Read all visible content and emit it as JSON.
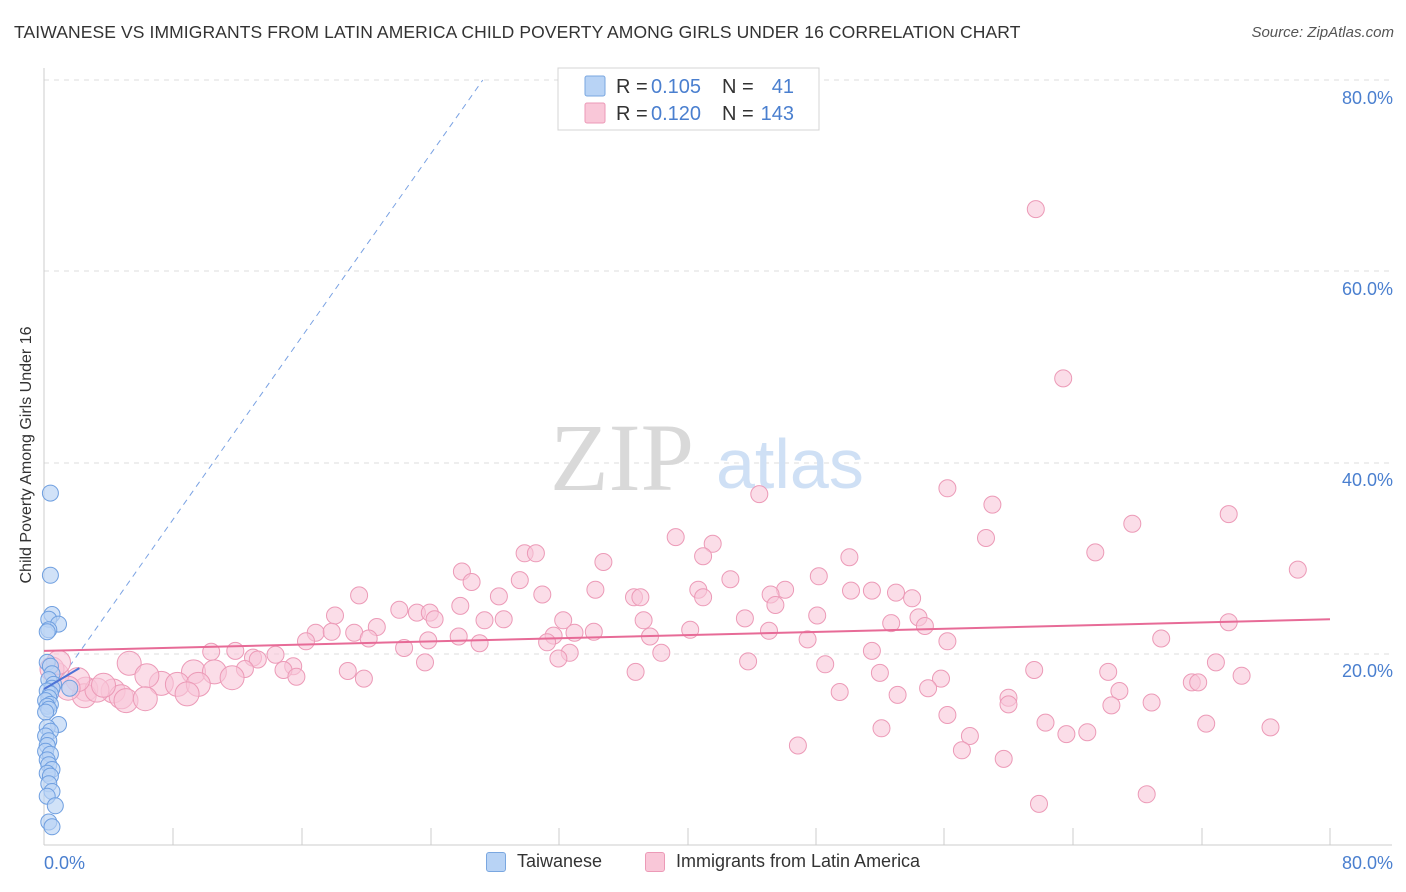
{
  "title": "TAIWANESE VS IMMIGRANTS FROM LATIN AMERICA CHILD POVERTY AMONG GIRLS UNDER 16 CORRELATION CHART",
  "source": "Source: ZipAtlas.com",
  "watermark": {
    "zip": "ZIP",
    "atlas": "atlas"
  },
  "colors": {
    "taiwanese_fill": "#b8d3f5",
    "taiwanese_stroke": "#6f9fe0",
    "taiwanese_line": "#4d73d6",
    "latin_fill": "#f9c7d8",
    "latin_stroke": "#ec9ab7",
    "latin_line": "#e76b97",
    "tick_label": "#4a7fcf",
    "grid": "#dddddd"
  },
  "legend": {
    "rows": [
      {
        "r_label": "R =",
        "r_value": "0.105",
        "n_label": "N =",
        "n_value": "41"
      },
      {
        "r_label": "R =",
        "r_value": "0.120",
        "n_label": "N =",
        "n_value": "143"
      }
    ]
  },
  "bottom_legend": {
    "taiwanese": "Taiwanese",
    "latin": "Immigrants from Latin America"
  },
  "chart_data": {
    "type": "scatter",
    "title": "TAIWANESE VS IMMIGRANTS FROM LATIN AMERICA CHILD POVERTY AMONG GIRLS UNDER 16 CORRELATION CHART",
    "xlabel": "",
    "ylabel": "Child Poverty Among Girls Under 16",
    "xlim": [
      0,
      80
    ],
    "ylim": [
      0,
      80
    ],
    "x_tick_labels": [
      "0.0%",
      "80.0%"
    ],
    "y_ticks": [
      20,
      40,
      60,
      80
    ],
    "y_tick_labels": [
      "20.0%",
      "40.0%",
      "60.0%",
      "80.0%"
    ],
    "grid": true,
    "legend_position": "top-center",
    "series": [
      {
        "name": "Taiwanese",
        "r": 0.105,
        "n": 41,
        "trend": {
          "x0": 0,
          "y0": 16.3,
          "x1": 2.2,
          "y1": 18.5
        },
        "ref_line": {
          "x0": 0,
          "y0": 14.9,
          "x1": 27.3,
          "y1": 80
        },
        "points": [
          [
            0.4,
            36.8
          ],
          [
            0.4,
            28.2
          ],
          [
            0.5,
            24.1
          ],
          [
            0.3,
            23.6
          ],
          [
            0.9,
            23.1
          ],
          [
            0.3,
            22.5
          ],
          [
            0.2,
            22.3
          ],
          [
            0.2,
            19.1
          ],
          [
            0.4,
            18.7
          ],
          [
            0.5,
            17.9
          ],
          [
            0.3,
            17.3
          ],
          [
            0.6,
            16.8
          ],
          [
            0.5,
            16.4
          ],
          [
            0.2,
            16.1
          ],
          [
            0.4,
            15.8
          ],
          [
            0.3,
            15.4
          ],
          [
            0.1,
            15.1
          ],
          [
            0.4,
            14.7
          ],
          [
            0.2,
            14.5
          ],
          [
            0.3,
            14.2
          ],
          [
            0.1,
            13.9
          ],
          [
            0.9,
            12.6
          ],
          [
            0.2,
            12.3
          ],
          [
            0.4,
            11.9
          ],
          [
            0.1,
            11.4
          ],
          [
            0.3,
            10.9
          ],
          [
            0.2,
            10.4
          ],
          [
            0.1,
            9.8
          ],
          [
            0.4,
            9.5
          ],
          [
            0.2,
            8.9
          ],
          [
            0.3,
            8.4
          ],
          [
            0.5,
            7.9
          ],
          [
            0.2,
            7.5
          ],
          [
            0.4,
            7.2
          ],
          [
            0.3,
            6.4
          ],
          [
            0.5,
            5.6
          ],
          [
            0.2,
            5.1
          ],
          [
            0.7,
            4.1
          ],
          [
            0.3,
            2.4
          ],
          [
            0.5,
            1.9
          ],
          [
            1.6,
            16.4
          ]
        ]
      },
      {
        "name": "Immigrants from Latin America",
        "r": 0.12,
        "n": 143,
        "trend": {
          "x0": 0,
          "y0": 20.3,
          "x1": 80,
          "y1": 23.6
        },
        "points": [
          [
            61.7,
            66.5
          ],
          [
            63.4,
            48.8
          ],
          [
            44.5,
            36.7
          ],
          [
            56.2,
            37.3
          ],
          [
            59.0,
            35.6
          ],
          [
            73.7,
            34.6
          ],
          [
            67.7,
            33.6
          ],
          [
            39.3,
            32.2
          ],
          [
            58.6,
            32.1
          ],
          [
            41.6,
            31.5
          ],
          [
            29.9,
            30.5
          ],
          [
            30.6,
            30.5
          ],
          [
            41.0,
            30.2
          ],
          [
            50.1,
            30.1
          ],
          [
            65.4,
            30.6
          ],
          [
            34.8,
            29.6
          ],
          [
            26.0,
            28.6
          ],
          [
            78.0,
            28.8
          ],
          [
            48.2,
            28.1
          ],
          [
            42.7,
            27.8
          ],
          [
            29.6,
            27.7
          ],
          [
            26.6,
            27.5
          ],
          [
            34.3,
            26.7
          ],
          [
            40.7,
            26.7
          ],
          [
            46.1,
            26.7
          ],
          [
            51.5,
            26.6
          ],
          [
            50.2,
            26.6
          ],
          [
            53.0,
            26.4
          ],
          [
            45.2,
            26.2
          ],
          [
            36.7,
            25.9
          ],
          [
            37.1,
            25.9
          ],
          [
            31.0,
            26.2
          ],
          [
            19.6,
            26.1
          ],
          [
            28.3,
            26.0
          ],
          [
            54.0,
            25.8
          ],
          [
            41.0,
            25.9
          ],
          [
            45.5,
            25.1
          ],
          [
            25.9,
            25.0
          ],
          [
            22.1,
            24.6
          ],
          [
            23.2,
            24.3
          ],
          [
            24.0,
            24.3
          ],
          [
            18.1,
            24.0
          ],
          [
            48.1,
            24.0
          ],
          [
            73.7,
            23.3
          ],
          [
            27.4,
            23.5
          ],
          [
            28.6,
            23.6
          ],
          [
            37.3,
            23.5
          ],
          [
            43.6,
            23.7
          ],
          [
            54.4,
            23.8
          ],
          [
            24.3,
            23.6
          ],
          [
            32.3,
            23.5
          ],
          [
            52.7,
            23.2
          ],
          [
            54.8,
            22.9
          ],
          [
            20.7,
            22.8
          ],
          [
            16.9,
            22.2
          ],
          [
            17.9,
            22.3
          ],
          [
            19.3,
            22.2
          ],
          [
            33.0,
            22.2
          ],
          [
            34.2,
            22.3
          ],
          [
            40.2,
            22.5
          ],
          [
            45.1,
            22.4
          ],
          [
            25.8,
            21.8
          ],
          [
            31.7,
            21.9
          ],
          [
            37.7,
            21.8
          ],
          [
            16.3,
            21.3
          ],
          [
            20.2,
            21.6
          ],
          [
            23.9,
            21.4
          ],
          [
            27.1,
            21.1
          ],
          [
            31.3,
            21.2
          ],
          [
            47.5,
            21.5
          ],
          [
            56.2,
            21.3
          ],
          [
            69.5,
            21.6
          ],
          [
            10.4,
            20.2
          ],
          [
            11.9,
            20.3
          ],
          [
            13.0,
            19.6
          ],
          [
            13.3,
            19.4
          ],
          [
            14.4,
            19.9
          ],
          [
            22.4,
            20.6
          ],
          [
            32.7,
            20.1
          ],
          [
            38.4,
            20.1
          ],
          [
            51.5,
            20.3
          ],
          [
            5.3,
            19.0
          ],
          [
            23.7,
            19.1
          ],
          [
            32.0,
            19.5
          ],
          [
            43.8,
            19.2
          ],
          [
            48.6,
            18.9
          ],
          [
            72.9,
            19.1
          ],
          [
            9.3,
            18.1
          ],
          [
            10.6,
            18.1
          ],
          [
            12.5,
            18.4
          ],
          [
            15.5,
            18.7
          ],
          [
            14.9,
            18.3
          ],
          [
            36.8,
            18.1
          ],
          [
            52.0,
            18.0
          ],
          [
            61.6,
            18.3
          ],
          [
            66.2,
            18.1
          ],
          [
            71.4,
            17.0
          ],
          [
            74.5,
            17.7
          ],
          [
            2.6,
            16.3
          ],
          [
            7.3,
            16.9
          ],
          [
            8.3,
            16.8
          ],
          [
            9.6,
            16.8
          ],
          [
            11.7,
            17.5
          ],
          [
            4.3,
            16.1
          ],
          [
            6.4,
            17.7
          ],
          [
            4.8,
            15.5
          ],
          [
            8.9,
            15.8
          ],
          [
            2.5,
            15.6
          ],
          [
            3.3,
            16.2
          ],
          [
            2.1,
            17.3
          ],
          [
            0.8,
            17.8
          ],
          [
            0.5,
            18.4
          ],
          [
            0.9,
            19.1
          ],
          [
            1.5,
            16.4
          ],
          [
            3.7,
            16.7
          ],
          [
            5.1,
            15.1
          ],
          [
            6.3,
            15.3
          ],
          [
            55.8,
            17.4
          ],
          [
            55.0,
            16.4
          ],
          [
            66.9,
            16.1
          ],
          [
            49.5,
            16.0
          ],
          [
            53.1,
            15.7
          ],
          [
            60.0,
            15.4
          ],
          [
            60.0,
            14.7
          ],
          [
            68.9,
            14.9
          ],
          [
            66.4,
            14.6
          ],
          [
            56.2,
            13.6
          ],
          [
            62.3,
            12.8
          ],
          [
            52.1,
            12.2
          ],
          [
            57.6,
            11.4
          ],
          [
            63.6,
            11.6
          ],
          [
            64.9,
            11.8
          ],
          [
            72.3,
            12.7
          ],
          [
            76.3,
            12.3
          ],
          [
            57.1,
            9.9
          ],
          [
            46.9,
            10.4
          ],
          [
            59.7,
            9.0
          ],
          [
            61.9,
            4.3
          ],
          [
            68.6,
            5.3
          ],
          [
            71.8,
            17.0
          ],
          [
            18.9,
            18.2
          ],
          [
            19.9,
            17.4
          ],
          [
            15.7,
            17.6
          ]
        ]
      }
    ]
  }
}
